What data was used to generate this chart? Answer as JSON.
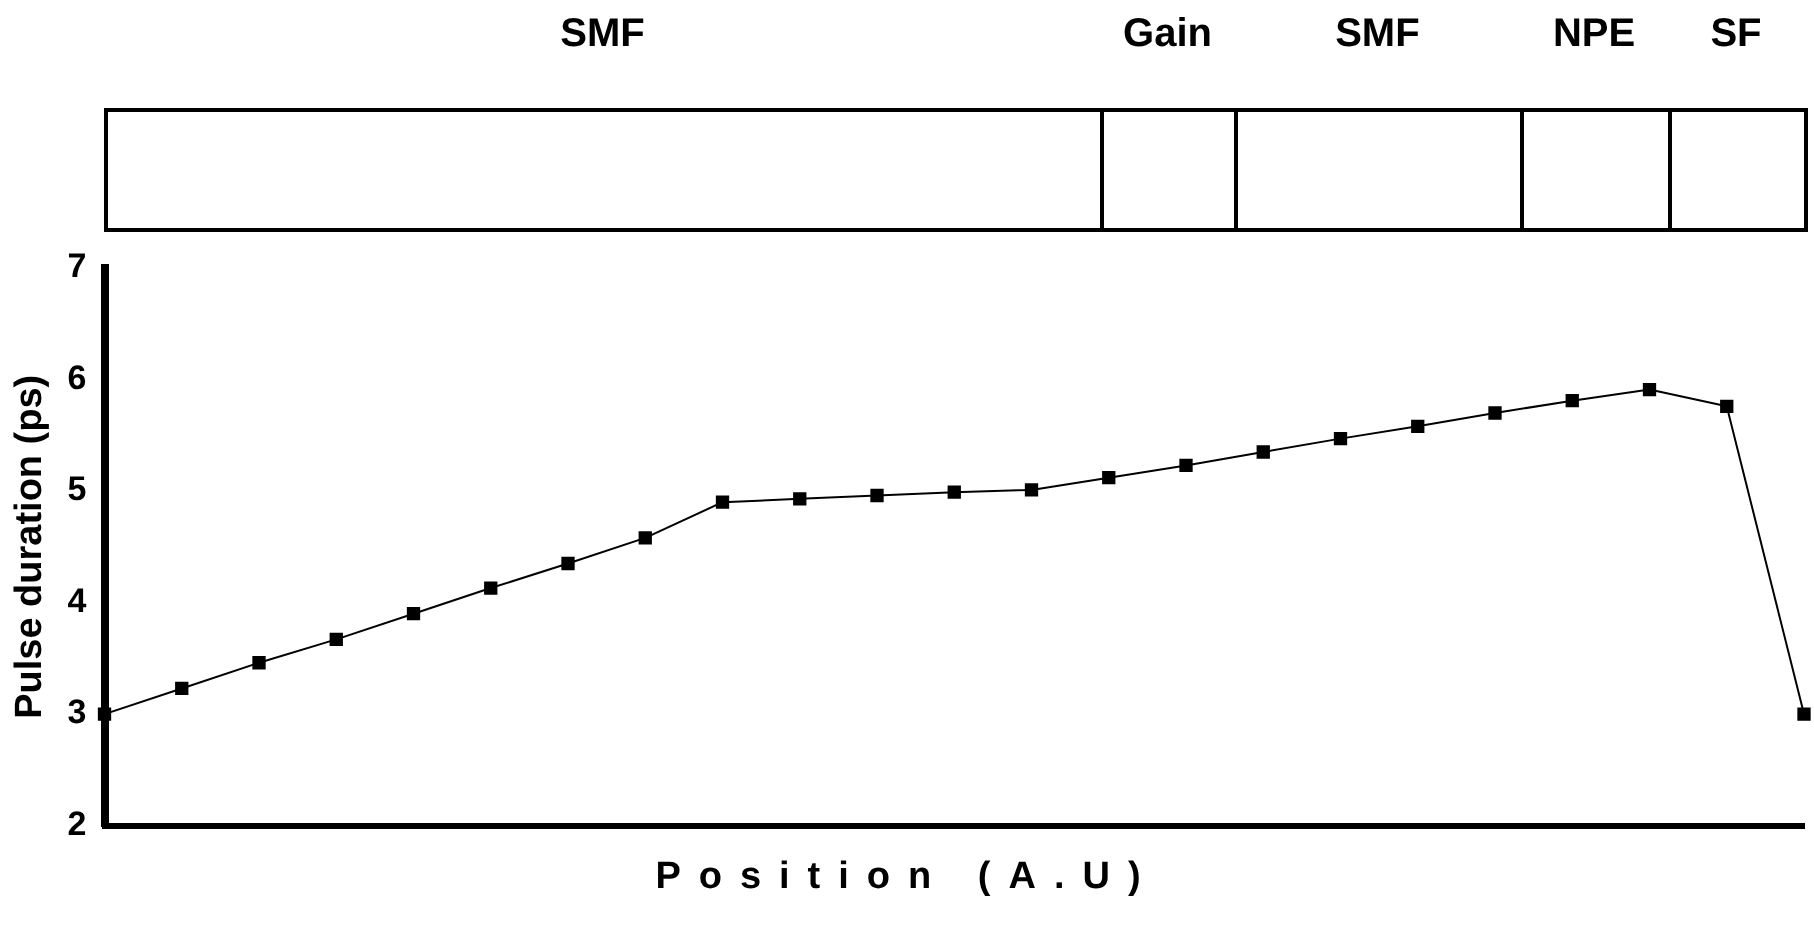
{
  "chart_data": {
    "type": "line",
    "xlabel": "Position (A.U)",
    "ylabel": "Pulse duration (ps)",
    "categories": [
      null,
      null,
      null,
      null,
      null,
      null,
      null,
      null,
      null,
      null,
      null,
      null,
      null,
      null,
      null,
      null,
      null,
      null,
      null,
      null,
      null,
      null,
      null
    ],
    "series": [
      {
        "color": "#000000",
        "values": [
          3.0,
          3.23,
          3.46,
          3.67,
          3.9,
          4.13,
          4.35,
          4.58,
          4.9,
          4.93,
          4.96,
          4.99,
          5.01,
          5.12,
          5.23,
          5.35,
          5.47,
          5.58,
          5.7,
          5.81,
          5.91,
          5.76,
          3.0
        ]
      }
    ],
    "ylim": [
      2,
      7
    ],
    "yticks": [
      2,
      3,
      4,
      5,
      6,
      7
    ],
    "grid": false,
    "legend": false,
    "marker": "square",
    "line_style": "solid",
    "annotations": [
      "SMF",
      "Gain",
      "SMF",
      "NPE",
      "SF"
    ]
  }
}
